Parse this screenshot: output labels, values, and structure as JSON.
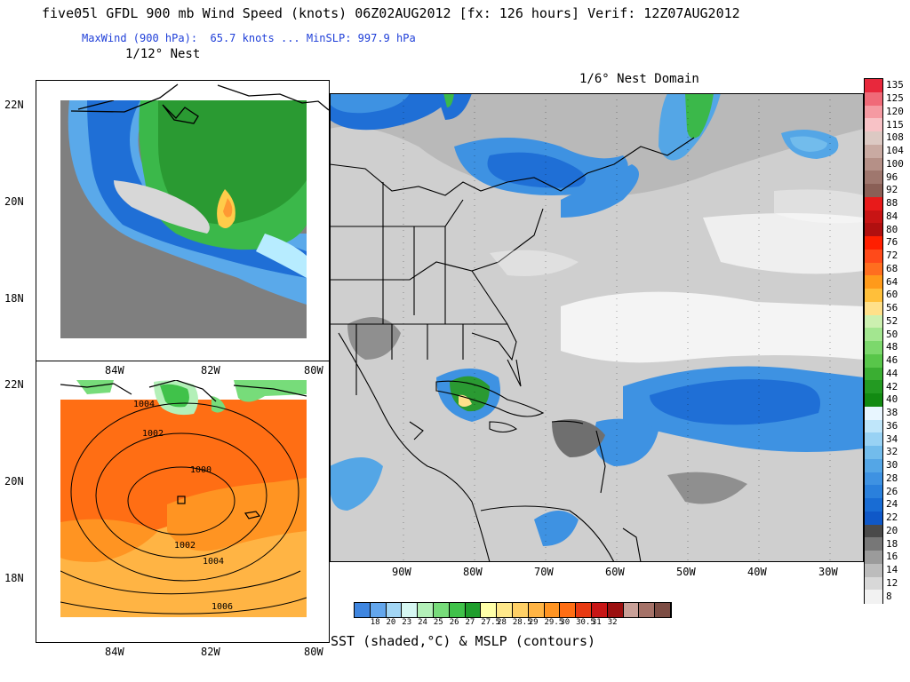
{
  "header": {
    "title": "five05l GFDL 900 mb Wind Speed (knots) 06Z02AUG2012 [fx: 126 hours] Verif: 12Z07AUG2012",
    "subtitle": "MaxWind (900 hPa):  65.7 knots ... MinSLP: 997.9 hPa",
    "nest_fine_label": "1/12° Nest",
    "nest_domain_label": "1/6° Nest Domain"
  },
  "top_left_panel": {
    "lat_labels": [
      "22N",
      "20N",
      "18N"
    ]
  },
  "bottom_left_panel": {
    "lat_labels": [
      "22N",
      "20N",
      "18N"
    ],
    "lon_labels_top": [
      "84W",
      "82W",
      "80W"
    ],
    "lon_labels_bottom": [
      "84W",
      "82W",
      "80W"
    ],
    "isobar_labels": [
      "1004",
      "1002",
      "1000",
      "1002",
      "1004",
      "1006"
    ]
  },
  "main_map": {
    "lon_labels": [
      "90W",
      "80W",
      "70W",
      "60W",
      "50W",
      "40W",
      "30W"
    ]
  },
  "wind_colorbar": {
    "labels": [
      "135",
      "125",
      "120",
      "115",
      "108",
      "104",
      "100",
      "96",
      "92",
      "88",
      "84",
      "80",
      "76",
      "72",
      "68",
      "64",
      "60",
      "56",
      "52",
      "50",
      "48",
      "46",
      "44",
      "42",
      "40",
      "38",
      "36",
      "34",
      "32",
      "30",
      "28",
      "26",
      "24",
      "22",
      "20",
      "18",
      "16",
      "14",
      "12",
      "8"
    ],
    "colors": [
      "#e8283c",
      "#f06a78",
      "#f59aa2",
      "#f8c2c6",
      "#dcc9c3",
      "#c9aaa2",
      "#b59087",
      "#9f776e",
      "#8a5f56",
      "#e81a1a",
      "#c81414",
      "#b00f0f",
      "#ff1f00",
      "#ff4a1a",
      "#ff6e1f",
      "#ff9a1a",
      "#ffbf3a",
      "#ffe08a",
      "#ccf0b0",
      "#a3e690",
      "#7cd86c",
      "#58c64a",
      "#3aae32",
      "#239a22",
      "#128a12",
      "#e8f6ff",
      "#bfe6fa",
      "#98d2f4",
      "#72bcec",
      "#54a6e6",
      "#3e92e2",
      "#2a80dc",
      "#186cd4",
      "#0f58c8",
      "#4a4a4a",
      "#777777",
      "#9b9b9b",
      "#bcbcbc",
      "#d8d8d8",
      "#f2f2f2"
    ]
  },
  "sst_colorbar": {
    "labels": [
      "18",
      "20",
      "23",
      "24",
      "25",
      "26",
      "27",
      "27.5",
      "28",
      "28.5",
      "29",
      "29.5",
      "30",
      "30.5",
      "31",
      "32"
    ],
    "colors": [
      "#3f86e0",
      "#63a6ec",
      "#a3d6f5",
      "#d6f7f2",
      "#b3f0b8",
      "#77dc7a",
      "#40c24a",
      "#1f9e2c",
      "#ffffa8",
      "#ffe88a",
      "#ffd066",
      "#ffb444",
      "#ff9422",
      "#ff6e14",
      "#e83a12",
      "#c81616",
      "#9c1010",
      "#c9a098",
      "#a57268",
      "#7d4d44"
    ],
    "caption": "SST (shaded,°C) & MSLP (contours)"
  },
  "colors": {
    "title_text": "#000000",
    "subtitle_text": "#1f3fd8"
  }
}
